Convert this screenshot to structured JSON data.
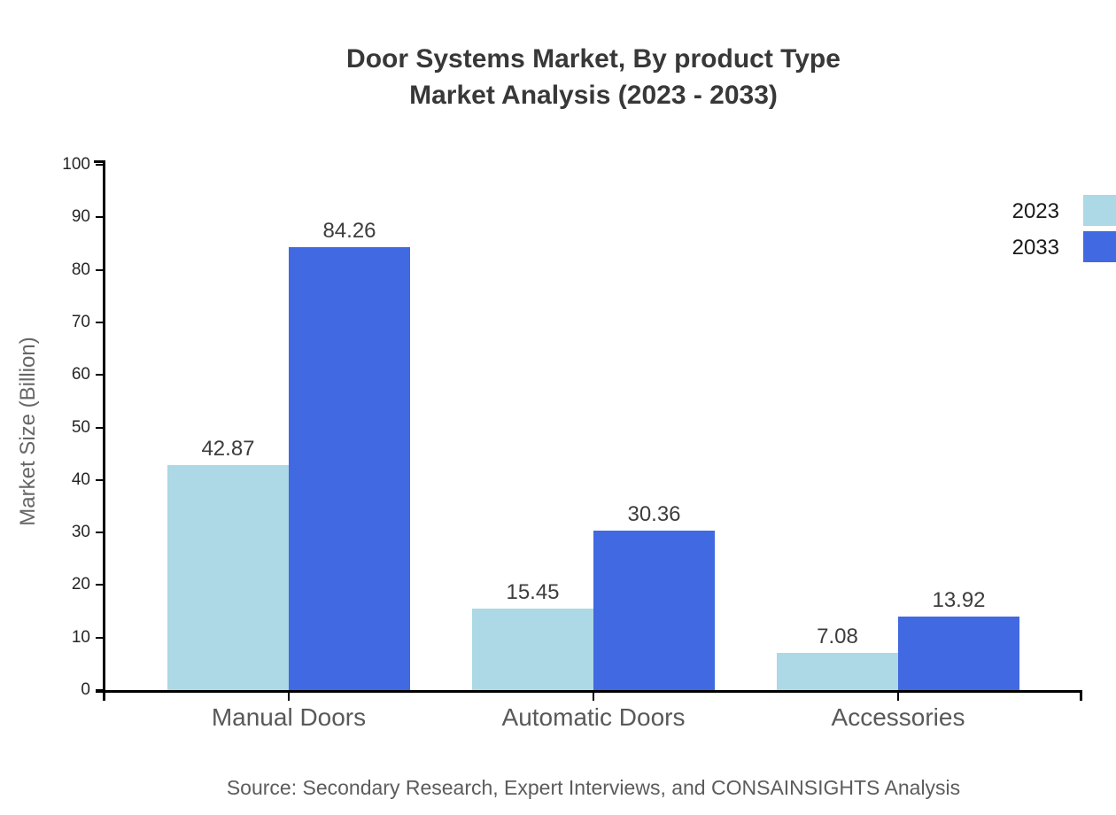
{
  "title": {
    "line1": "Door Systems Market, By product Type",
    "line2": "Market Analysis (2023 - 2033)"
  },
  "chart_data": {
    "type": "bar",
    "title": "Door Systems Market, By product Type Market Analysis (2023 - 2033)",
    "categories": [
      "Manual Doors",
      "Automatic Doors",
      "Accessories"
    ],
    "series": [
      {
        "name": "2023",
        "color": "#ADD8E6",
        "values": [
          42.87,
          15.45,
          7.08
        ]
      },
      {
        "name": "2033",
        "color": "#4169E1",
        "values": [
          84.26,
          30.36,
          13.92
        ]
      }
    ],
    "value_labels": [
      "42.87",
      "84.26",
      "15.45",
      "30.36",
      "7.08",
      "13.92"
    ],
    "xlabel": "",
    "ylabel": "Market Size (Billion)",
    "ylim": [
      0,
      100
    ],
    "yticks": [
      0,
      10,
      20,
      30,
      40,
      50,
      60,
      70,
      80,
      90,
      100
    ],
    "grid": false,
    "legend_position": "top-right",
    "legend_entries": [
      "2023",
      "2033"
    ]
  },
  "source": "Source: Secondary Research, Expert Interviews, and CONSAINSIGHTS Analysis",
  "colors": {
    "series_2023": "#ADD8E6",
    "series_2033": "#4169E1",
    "axis": "#000000",
    "title_text": "#383838",
    "value_text": "#3d3d3d",
    "category_text": "#595959",
    "source_text": "#5c5c5c"
  }
}
